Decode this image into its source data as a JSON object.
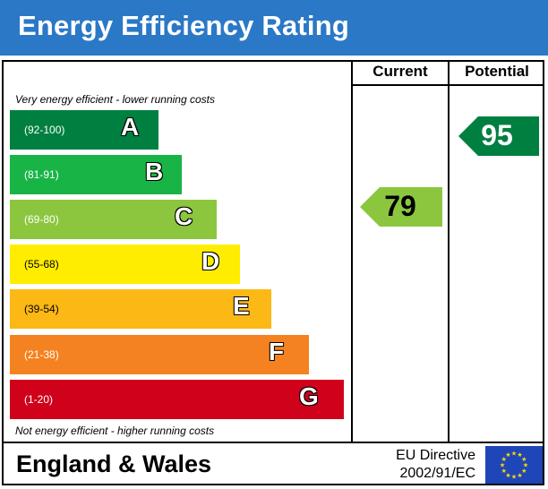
{
  "title": "Energy Efficiency Rating",
  "columns": {
    "current": "Current",
    "potential": "Potential"
  },
  "notes": {
    "top": "Very energy efficient - lower running costs",
    "bottom": "Not energy efficient - higher running costs"
  },
  "bands": [
    {
      "letter": "A",
      "range": "(92-100)",
      "color": "#008040",
      "text_color": "#ffffff"
    },
    {
      "letter": "B",
      "range": "(81-91)",
      "color": "#19b446",
      "text_color": "#ffffff"
    },
    {
      "letter": "C",
      "range": "(69-80)",
      "color": "#8cc63f",
      "text_color": "#ffffff"
    },
    {
      "letter": "D",
      "range": "(55-68)",
      "color": "#ffed00",
      "text_color": "#000000"
    },
    {
      "letter": "E",
      "range": "(39-54)",
      "color": "#fcb814",
      "text_color": "#000000"
    },
    {
      "letter": "F",
      "range": "(21-38)",
      "color": "#f58220",
      "text_color": "#ffffff"
    },
    {
      "letter": "G",
      "range": "(1-20)",
      "color": "#d0021b",
      "text_color": "#ffffff"
    }
  ],
  "current": {
    "value": "79",
    "band": "C",
    "color": "#8cc63f"
  },
  "potential": {
    "value": "95",
    "band": "A",
    "color": "#008040"
  },
  "footer": {
    "region": "England & Wales",
    "directive_line1": "EU Directive",
    "directive_line2": "2002/91/EC"
  },
  "colors": {
    "header_blue": "#2b78c7",
    "eu_flag_blue": "#1f46b8",
    "eu_star": "#ffdd00"
  },
  "icons": [
    "eu-flag-icon"
  ]
}
